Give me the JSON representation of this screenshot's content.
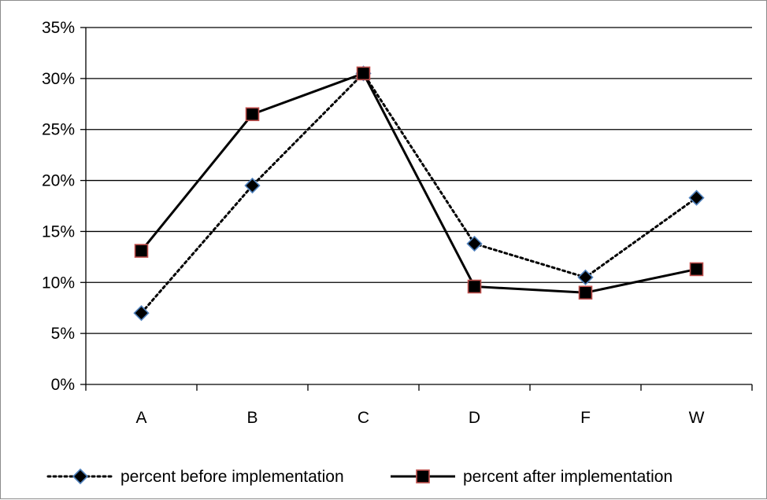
{
  "chart_data": {
    "type": "line",
    "categories": [
      "A",
      "B",
      "C",
      "D",
      "F",
      "W"
    ],
    "series": [
      {
        "name": "percent before implementation",
        "values": [
          0.07,
          0.195,
          0.305,
          0.138,
          0.105,
          0.183
        ],
        "line_style": "dotted",
        "marker": "diamond",
        "marker_fill": "#000000",
        "marker_edge": "#4f81bd"
      },
      {
        "name": "percent after implementation",
        "values": [
          0.131,
          0.265,
          0.305,
          0.096,
          0.09,
          0.113
        ],
        "line_style": "solid",
        "marker": "square",
        "marker_fill": "#000000",
        "marker_edge": "#c0504d"
      }
    ],
    "ylim": [
      0,
      0.35
    ],
    "y_ticks": [
      0,
      0.05,
      0.1,
      0.15,
      0.2,
      0.25,
      0.3,
      0.35
    ],
    "y_tick_labels": [
      "0%",
      "5%",
      "10%",
      "15%",
      "20%",
      "25%",
      "30%",
      "35%"
    ],
    "grid": true,
    "legend_position": "bottom",
    "title": "",
    "xlabel": "",
    "ylabel": ""
  }
}
